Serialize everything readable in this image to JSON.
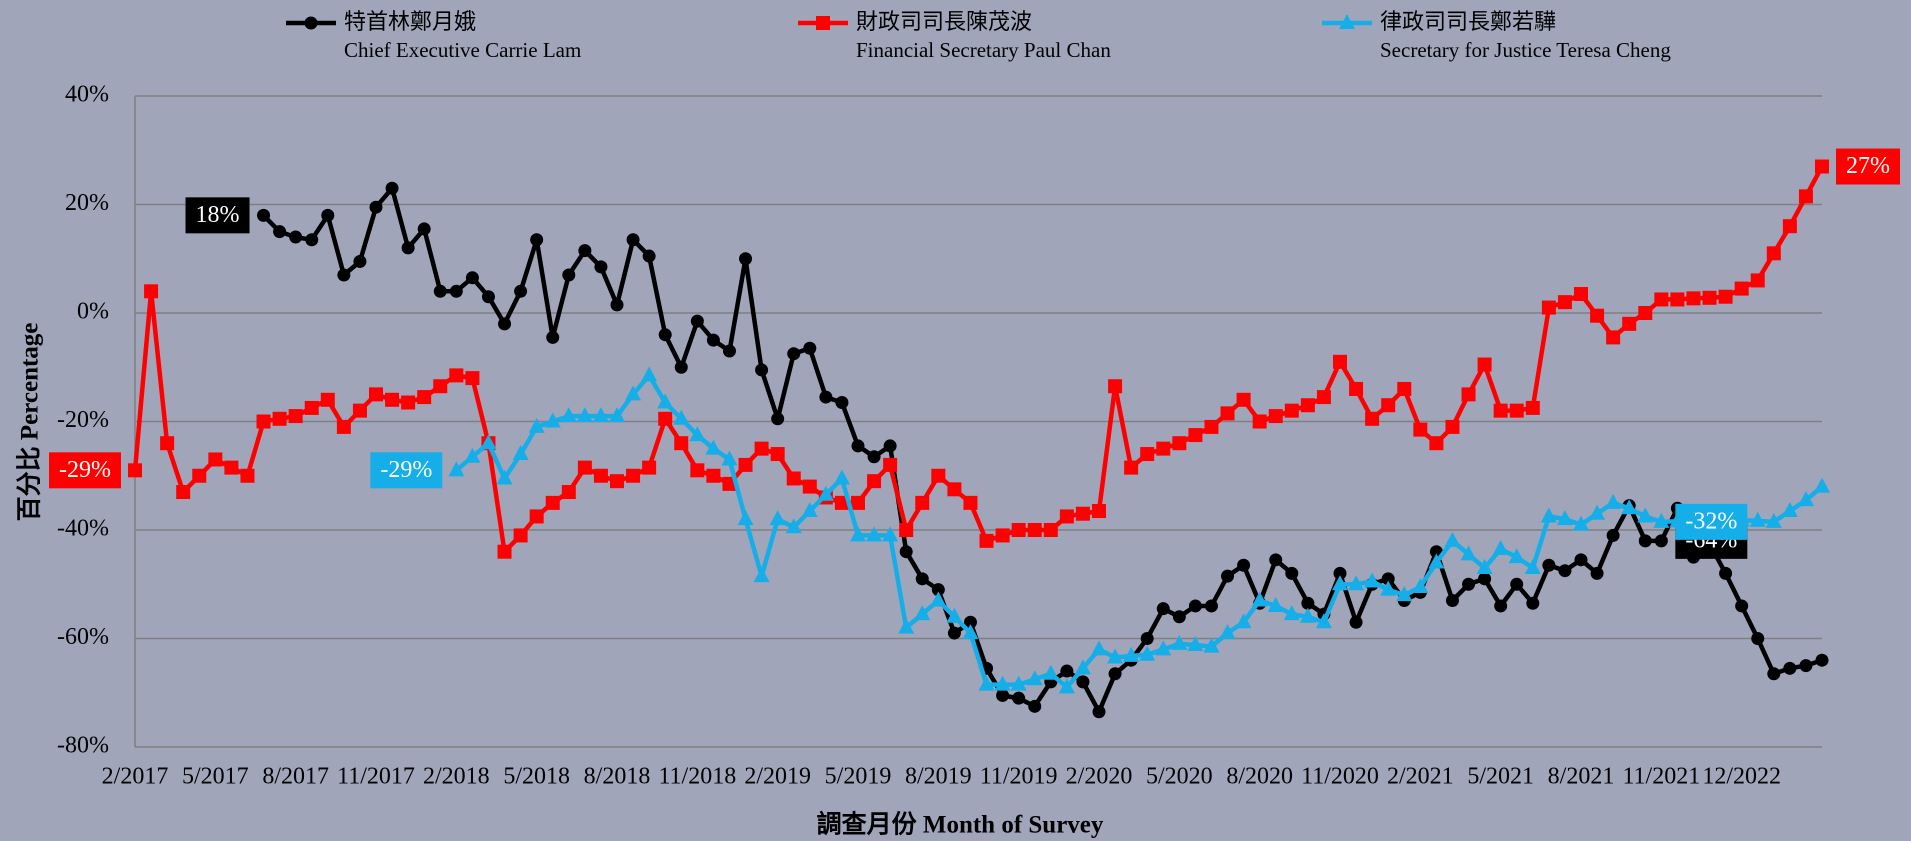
{
  "chart_data": {
    "type": "line",
    "y_label": "百分比 Percentage",
    "x_label": "調查月份 Month of Survey",
    "ylim": [
      -80,
      40
    ],
    "yticks": [
      {
        "value": -80,
        "label": "-80%"
      },
      {
        "value": -60,
        "label": "-60%"
      },
      {
        "value": -40,
        "label": "-40%"
      },
      {
        "value": -20,
        "label": "-20%"
      },
      {
        "value": 0,
        "label": "0%"
      },
      {
        "value": 20,
        "label": "20%"
      },
      {
        "value": 40,
        "label": "40%"
      }
    ],
    "grid": true,
    "categories": [
      "2/2017",
      null,
      null,
      null,
      null,
      "5/2017",
      null,
      null,
      null,
      null,
      "8/2017",
      null,
      null,
      null,
      null,
      "11/2017",
      null,
      null,
      null,
      null,
      "2/2018",
      null,
      null,
      null,
      null,
      "5/2018",
      null,
      null,
      null,
      null,
      "8/2018",
      null,
      null,
      null,
      null,
      "11/2018",
      null,
      null,
      null,
      null,
      "2/2019",
      null,
      null,
      null,
      null,
      "5/2019",
      null,
      null,
      null,
      null,
      "8/2019",
      null,
      null,
      null,
      null,
      "11/2019",
      null,
      null,
      null,
      null,
      "2/2020",
      null,
      null,
      null,
      null,
      "5/2020",
      null,
      null,
      null,
      null,
      "8/2020",
      null,
      null,
      null,
      null,
      "11/2020",
      null,
      null,
      null,
      null,
      "2/2021",
      null,
      null,
      null,
      null,
      "5/2021",
      null,
      null,
      null,
      null,
      "8/2021",
      null,
      null,
      null,
      null,
      "11/2021",
      null,
      null,
      null,
      null,
      "12/2022",
      null,
      null,
      null,
      null,
      null
    ],
    "series": [
      {
        "name": "特首林鄭月娥",
        "name_en": "Chief Executive Carrie Lam",
        "color": "#000000",
        "marker": "circle",
        "values": [
          null,
          null,
          null,
          null,
          null,
          null,
          null,
          null,
          18,
          15,
          14,
          13.5,
          18,
          7,
          9.5,
          19.5,
          23,
          12,
          15.5,
          4,
          4,
          6.5,
          3,
          -2,
          4,
          13.5,
          -4.5,
          7,
          11.5,
          8.5,
          1.5,
          13.5,
          10.5,
          -4,
          -10,
          -1.5,
          -5,
          -7,
          10,
          -10.5,
          -19.5,
          -7.5,
          -6.5,
          -15.5,
          -16.5,
          -24.5,
          -26.5,
          -24.5,
          -44,
          -49,
          -51,
          -59,
          -57,
          -65.5,
          -70.5,
          -71,
          -72.5,
          -68,
          -66,
          -68,
          -73.5,
          -66.5,
          -64,
          -60,
          -54.5,
          -56,
          -54,
          -54,
          -48.5,
          -46.5,
          -53.5,
          -45.5,
          -48,
          -53.5,
          -55.5,
          -48,
          -57,
          -50,
          -49,
          -53,
          -51.5,
          -44,
          -53,
          -50,
          -49,
          -54,
          -50,
          -53.5,
          -46.5,
          -47.5,
          -45.5,
          -48,
          -41,
          -35.5,
          -42,
          -42,
          -36,
          -45,
          -42.5,
          -48,
          -54,
          -60,
          -66.5,
          -65.5,
          -65,
          -64
        ],
        "value_labels": [
          null,
          null,
          null,
          null,
          null,
          null,
          null,
          null,
          "18%",
          null,
          null,
          null,
          null,
          null,
          null,
          null,
          null,
          null,
          null,
          null,
          null,
          null,
          null,
          null,
          null,
          null,
          null,
          null,
          null,
          null,
          null,
          null,
          null,
          null,
          null,
          null,
          null,
          null,
          null,
          null,
          null,
          null,
          null,
          null,
          null,
          null,
          null,
          null,
          null,
          null,
          null,
          null,
          null,
          null,
          null,
          null,
          null,
          null,
          null,
          null,
          null,
          null,
          null,
          null,
          null,
          null,
          null,
          null,
          null,
          null,
          null,
          null,
          null,
          null,
          null,
          null,
          null,
          null,
          null,
          null,
          null,
          null,
          null,
          null,
          null,
          null,
          null,
          null,
          null,
          null,
          null,
          null,
          null,
          null,
          null,
          "-64%"
        ]
      },
      {
        "name": "財政司司長陳茂波",
        "name_en": "Financial Secretary Paul Chan",
        "color": "#ff0000",
        "marker": "square",
        "values": [
          -29,
          4,
          -24,
          -33,
          -30,
          -27,
          -28.5,
          -30,
          -20,
          -19.5,
          -19,
          -17.5,
          -16,
          -21,
          -18,
          -15,
          -16,
          -16.5,
          -15.5,
          -13.5,
          -11.5,
          -12,
          -24,
          -44,
          -41,
          -37.5,
          -35,
          -33,
          -28.5,
          -30,
          -31,
          -30,
          -28.5,
          -19.5,
          -24,
          -29,
          -30,
          -31.5,
          -28,
          -25,
          -26,
          -30.5,
          -32,
          -34,
          -35,
          -35,
          -31,
          -28,
          -40,
          -35,
          -30,
          -32.5,
          -35,
          -42,
          -41,
          -40,
          -40,
          -40,
          -37.5,
          -37,
          -36.5,
          -13.5,
          -28.5,
          -26,
          -25,
          -24,
          -22.5,
          -21,
          -18.5,
          -16,
          -20,
          -19,
          -18,
          -17,
          -15.5,
          -9,
          -14,
          -19.5,
          -17,
          -14,
          -21.5,
          -24,
          -21,
          -15,
          -9.5,
          -18,
          -18,
          -17.5,
          1,
          2,
          3.5,
          -0.5,
          -4.5,
          -2,
          0,
          2.5,
          2.5,
          2.7,
          2.8,
          3,
          4.5,
          6,
          11,
          16,
          21.5,
          27
        ],
        "value_labels": [
          "-29%",
          null,
          null,
          null,
          null,
          null,
          null,
          null,
          null,
          null,
          null,
          null,
          null,
          null,
          null,
          null,
          null,
          null,
          null,
          null,
          null,
          null,
          null,
          null,
          null,
          null,
          null,
          null,
          null,
          null,
          null,
          null,
          null,
          null,
          null,
          null,
          null,
          null,
          null,
          null,
          null,
          null,
          null,
          null,
          null,
          null,
          null,
          null,
          null,
          null,
          null,
          null,
          null,
          null,
          null,
          null,
          null,
          null,
          null,
          null,
          null,
          null,
          null,
          null,
          null,
          null,
          null,
          null,
          null,
          null,
          null,
          null,
          null,
          null,
          null,
          null,
          null,
          null,
          null,
          null,
          null,
          null,
          null,
          null,
          null,
          null,
          null,
          null,
          null,
          null,
          null,
          null,
          null,
          null,
          null,
          null,
          null,
          null,
          null,
          null,
          null,
          null,
          null,
          null,
          null,
          "27%"
        ]
      },
      {
        "name": "律政司司長鄭若驊",
        "name_en": "Secretary for Justice Teresa Cheng",
        "color": "#16aee8",
        "marker": "triangle",
        "values": [
          null,
          null,
          null,
          null,
          null,
          null,
          null,
          null,
          null,
          null,
          null,
          null,
          null,
          null,
          null,
          null,
          null,
          null,
          null,
          null,
          -29,
          -26.5,
          -24,
          -30.5,
          -26,
          -21,
          -20,
          -19,
          -19,
          -19,
          -19,
          -15,
          -11.5,
          -16.5,
          -19.5,
          -22.5,
          -25,
          -27,
          -38,
          -48.5,
          -38,
          -39.5,
          -36.5,
          -33.5,
          -30.5,
          -41,
          -41,
          -41,
          -58,
          -55.5,
          -53,
          -56,
          -59,
          -68.5,
          -68.5,
          -68.5,
          -67.5,
          -66.5,
          -69,
          -65.5,
          -62,
          -63.5,
          -63.2,
          -63,
          -62,
          -61,
          -61.2,
          -61.5,
          -59,
          -57,
          -53,
          -54,
          -55.5,
          -56,
          -57,
          -50,
          -50,
          -49.5,
          -51,
          -52,
          -50.5,
          -46,
          -42,
          -44.5,
          -47,
          -43.5,
          -45,
          -47,
          -37.5,
          -38,
          -39,
          -37,
          -35,
          -36,
          -37.5,
          -38.5,
          -38.4,
          -38.2,
          -38.1,
          -38,
          -38.2,
          -38.3,
          -38.5,
          -36.5,
          -34.5,
          -32
        ],
        "value_labels": [
          null,
          null,
          null,
          null,
          null,
          null,
          null,
          null,
          null,
          null,
          null,
          null,
          null,
          null,
          null,
          null,
          null,
          null,
          null,
          null,
          "-29%",
          null,
          null,
          null,
          null,
          null,
          null,
          null,
          null,
          null,
          null,
          null,
          null,
          null,
          null,
          null,
          null,
          null,
          null,
          null,
          null,
          null,
          null,
          null,
          null,
          null,
          null,
          null,
          null,
          null,
          null,
          null,
          null,
          null,
          null,
          null,
          null,
          null,
          null,
          null,
          null,
          null,
          null,
          null,
          null,
          null,
          null,
          null,
          null,
          null,
          null,
          null,
          null,
          null,
          null,
          null,
          null,
          null,
          null,
          null,
          null,
          null,
          null,
          null,
          null,
          null,
          null,
          null,
          null,
          null,
          null,
          null,
          null,
          null,
          null,
          "-32%"
        ]
      }
    ]
  }
}
